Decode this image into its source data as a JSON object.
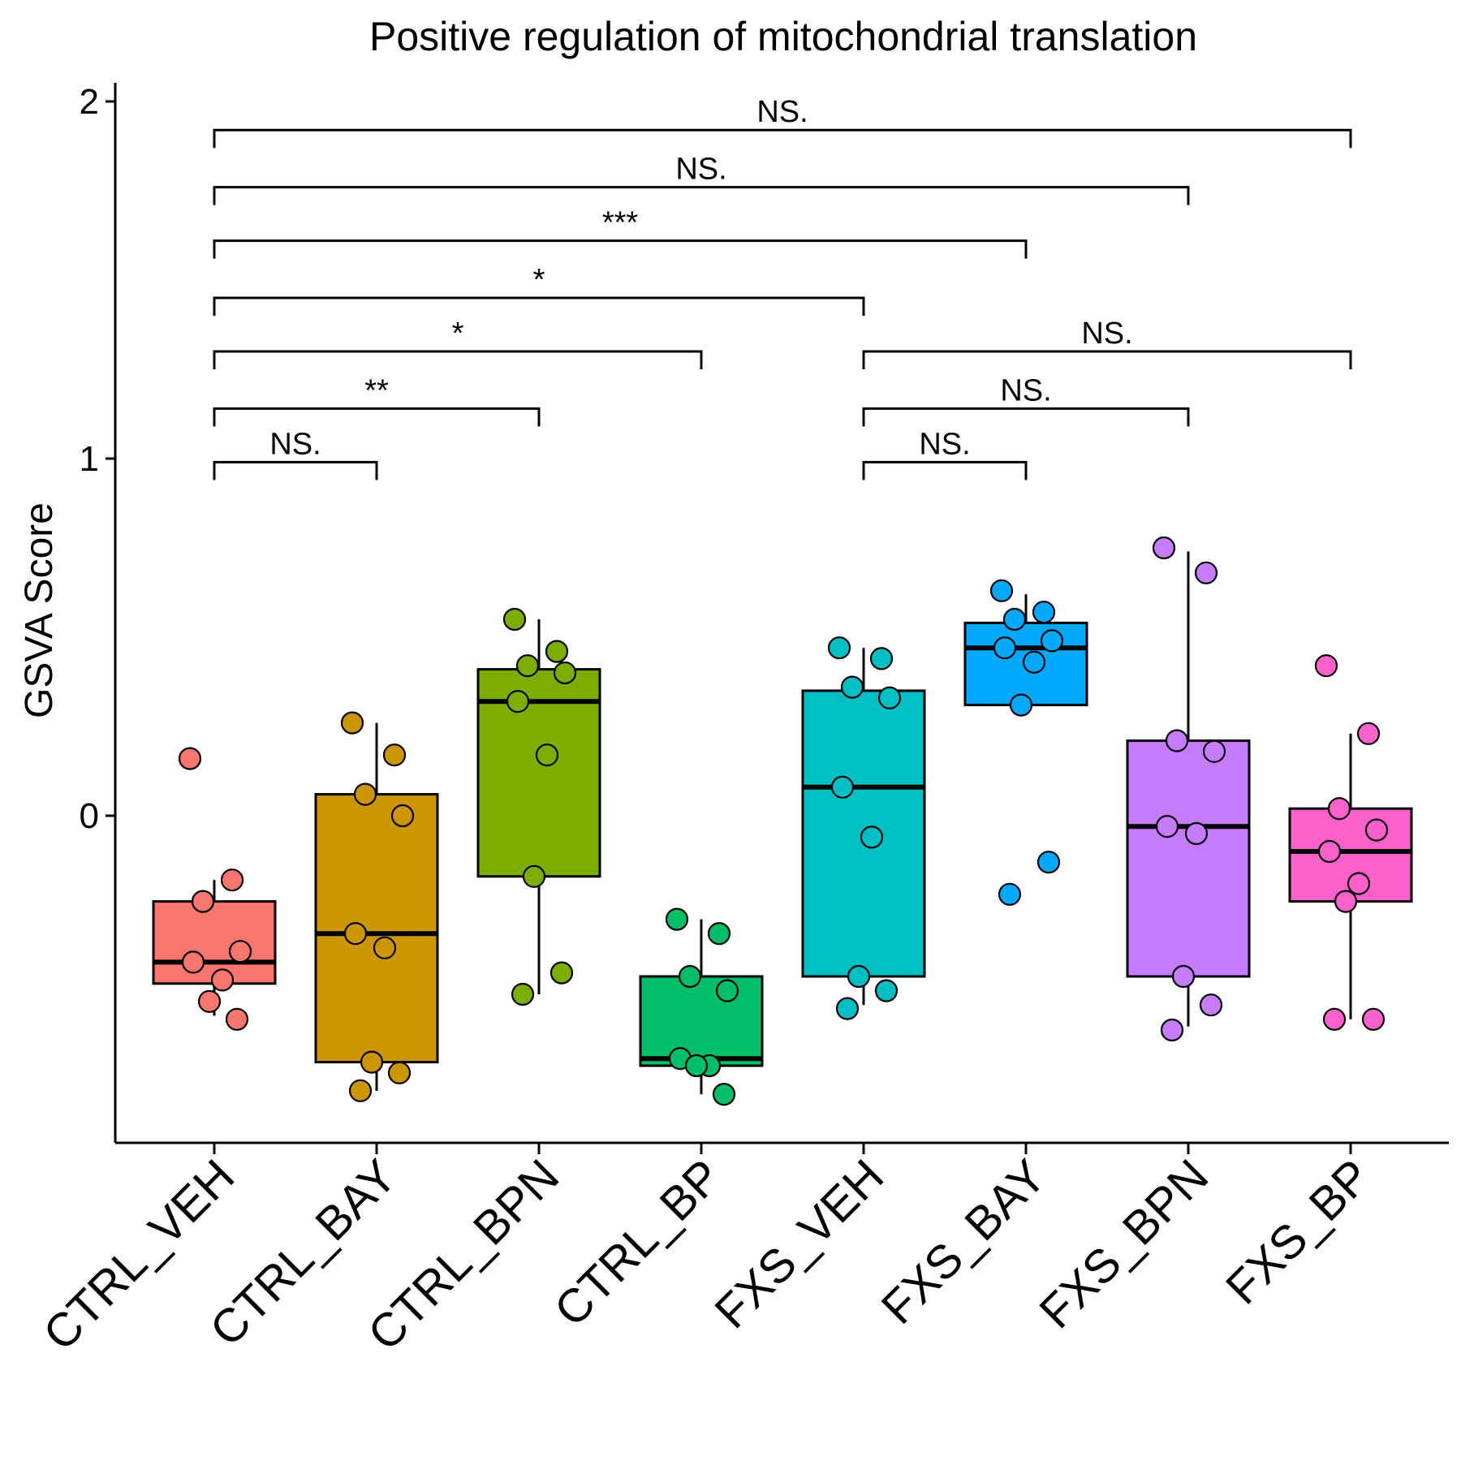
{
  "chart_data": {
    "type": "box",
    "title": "Positive regulation of mitochondrial translation",
    "xlabel": "",
    "ylabel": "GSVA Score",
    "ylim": [
      -0.92,
      2.05
    ],
    "yticks": [
      0,
      1,
      2
    ],
    "categories": [
      "CTRL_VEH",
      "CTRL_BAY",
      "CTRL_BPN",
      "CTRL_BP",
      "FXS_VEH",
      "FXS_BAY",
      "FXS_BPN",
      "FXS_BP"
    ],
    "colors": [
      "#F8766D",
      "#CD9600",
      "#7CAE00",
      "#00BE67",
      "#00BFC4",
      "#00A9FF",
      "#C77CFF",
      "#FF61CC"
    ],
    "boxes": [
      {
        "category": "CTRL_VEH",
        "whisker_low": -0.56,
        "q1": -0.47,
        "median": -0.41,
        "q3": -0.24,
        "whisker_high": -0.18,
        "points": [
          0.16,
          -0.18,
          -0.24,
          -0.38,
          -0.41,
          -0.46,
          -0.52,
          -0.57
        ]
      },
      {
        "category": "CTRL_BAY",
        "whisker_low": -0.77,
        "q1": -0.69,
        "median": -0.33,
        "q3": 0.06,
        "whisker_high": 0.26,
        "points": [
          0.26,
          0.17,
          0.06,
          0.0,
          -0.33,
          -0.37,
          -0.69,
          -0.72,
          -0.77
        ]
      },
      {
        "category": "CTRL_BPN",
        "whisker_low": -0.5,
        "q1": -0.17,
        "median": 0.32,
        "q3": 0.41,
        "whisker_high": 0.55,
        "points": [
          0.55,
          0.46,
          0.42,
          0.4,
          0.32,
          0.17,
          -0.17,
          -0.44,
          -0.5
        ]
      },
      {
        "category": "CTRL_BP",
        "whisker_low": -0.78,
        "q1": -0.7,
        "median": -0.68,
        "q3": -0.45,
        "whisker_high": -0.29,
        "points": [
          -0.29,
          -0.33,
          -0.45,
          -0.49,
          -0.68,
          -0.7,
          -0.7,
          -0.78
        ]
      },
      {
        "category": "FXS_VEH",
        "whisker_low": -0.53,
        "q1": -0.45,
        "median": 0.08,
        "q3": 0.35,
        "whisker_high": 0.47,
        "points": [
          0.47,
          0.44,
          0.36,
          0.33,
          0.08,
          -0.06,
          -0.45,
          -0.49,
          -0.54
        ]
      },
      {
        "category": "FXS_BAY",
        "whisker_low": 0.31,
        "q1": 0.31,
        "median": 0.47,
        "q3": 0.54,
        "whisker_high": 0.62,
        "points": [
          0.63,
          0.57,
          0.55,
          0.49,
          0.47,
          0.43,
          0.31,
          -0.13,
          -0.22
        ]
      },
      {
        "category": "FXS_BPN",
        "whisker_low": -0.59,
        "q1": -0.45,
        "median": -0.03,
        "q3": 0.21,
        "whisker_high": 0.74,
        "points": [
          0.75,
          0.68,
          0.21,
          0.18,
          -0.03,
          -0.05,
          -0.45,
          -0.53,
          -0.6
        ]
      },
      {
        "category": "FXS_BP",
        "whisker_low": -0.57,
        "q1": -0.24,
        "median": -0.1,
        "q3": 0.02,
        "whisker_high": 0.23,
        "points": [
          0.42,
          0.23,
          0.02,
          -0.04,
          -0.1,
          -0.19,
          -0.24,
          -0.57,
          -0.57
        ]
      }
    ],
    "significance": [
      {
        "from": "CTRL_VEH",
        "to": "FXS_BP",
        "label": "NS.",
        "y": 1.92
      },
      {
        "from": "CTRL_VEH",
        "to": "FXS_BPN",
        "label": "NS.",
        "y": 1.76
      },
      {
        "from": "CTRL_VEH",
        "to": "FXS_BAY",
        "label": "***",
        "y": 1.61
      },
      {
        "from": "CTRL_VEH",
        "to": "FXS_VEH",
        "label": "*",
        "y": 1.45
      },
      {
        "from": "CTRL_VEH",
        "to": "CTRL_BP",
        "label": "*",
        "y": 1.3
      },
      {
        "from": "FXS_VEH",
        "to": "FXS_BP",
        "label": "NS.",
        "y": 1.3
      },
      {
        "from": "CTRL_VEH",
        "to": "CTRL_BPN",
        "label": "**",
        "y": 1.14
      },
      {
        "from": "FXS_VEH",
        "to": "FXS_BPN",
        "label": "NS.",
        "y": 1.14
      },
      {
        "from": "CTRL_VEH",
        "to": "CTRL_BAY",
        "label": "NS.",
        "y": 0.99
      },
      {
        "from": "FXS_VEH",
        "to": "FXS_BAY",
        "label": "NS.",
        "y": 0.99
      }
    ],
    "grid": false,
    "legend": "none"
  }
}
